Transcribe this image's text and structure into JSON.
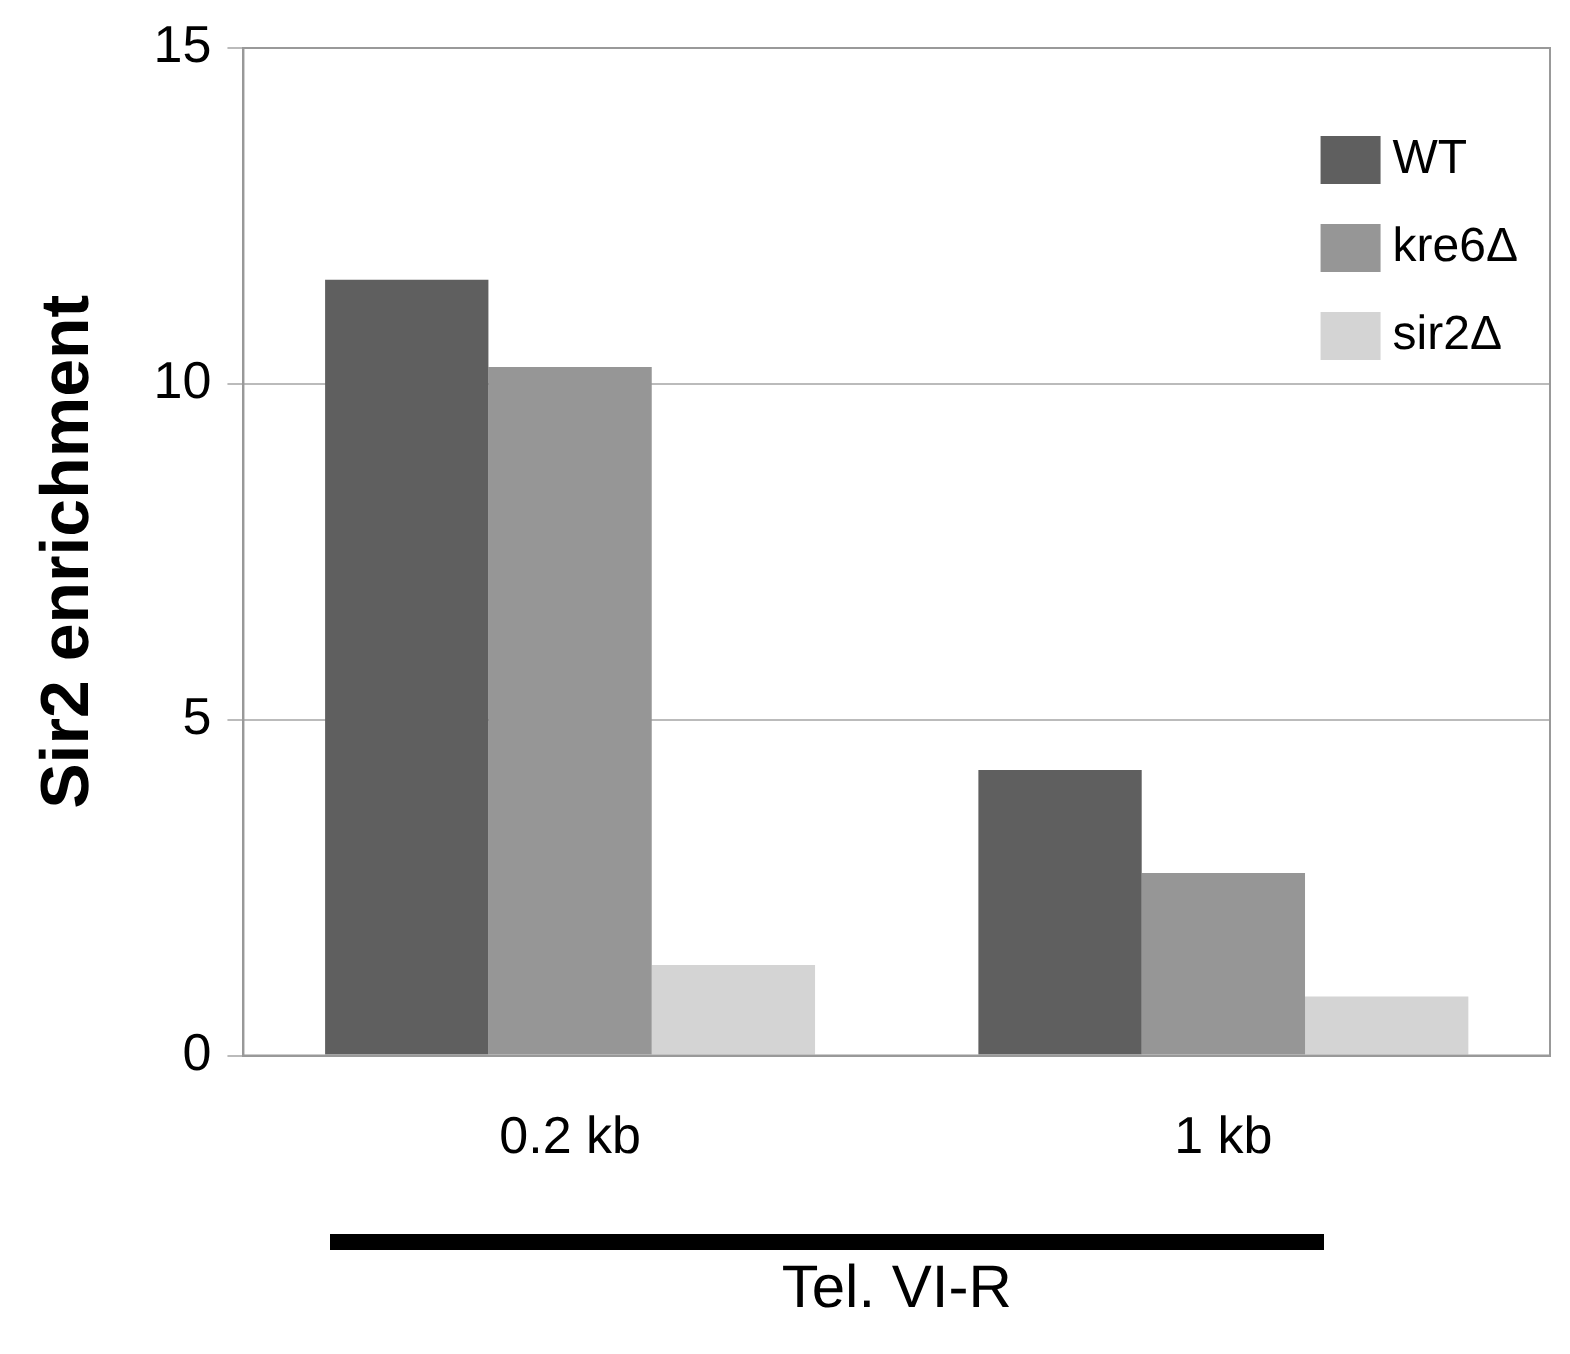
{
  "chart_data": {
    "type": "bar",
    "xlabel": "Tel. VI-R",
    "ylabel": "Sir2 enrichment",
    "categories": [
      "0.2 kb",
      "1 kb"
    ],
    "series": [
      {
        "name": "WT",
        "color": "#5f5f5f",
        "values": [
          11.55,
          4.25
        ]
      },
      {
        "name": "kre6Δ",
        "color": "#969696",
        "values": [
          10.25,
          2.72
        ]
      },
      {
        "name": "sir2Δ",
        "color": "#d4d4d4",
        "values": [
          1.35,
          0.88
        ]
      }
    ],
    "ylim": [
      0,
      15
    ],
    "yticks": [
      0,
      5,
      10,
      15
    ],
    "grid": "y",
    "legend": "top right"
  }
}
